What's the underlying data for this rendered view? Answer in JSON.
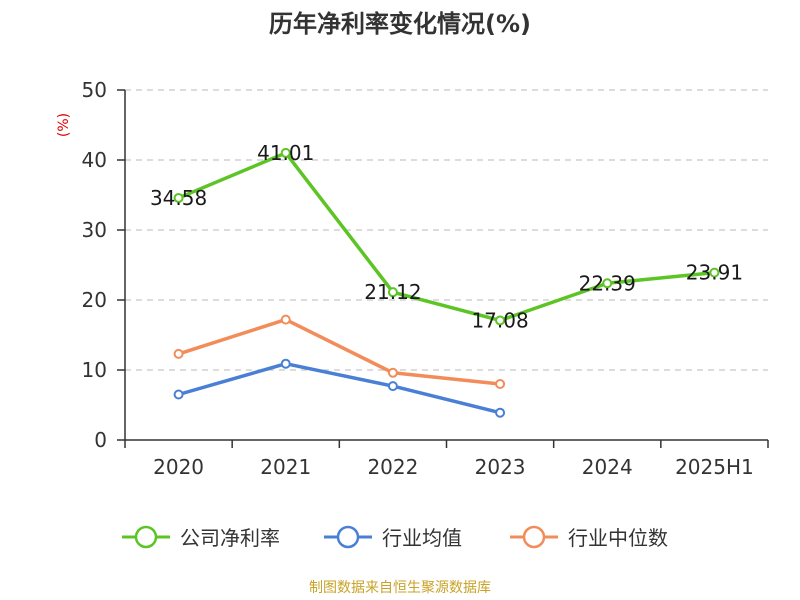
{
  "title": "历年净利率变化情况(%)",
  "source": "制图数据来自恒生聚源数据库",
  "chart_data": {
    "type": "line",
    "title": "历年净利率变化情况(%)",
    "ylabel": "(%)",
    "xlabel": "",
    "categories": [
      "2020",
      "2021",
      "2022",
      "2023",
      "2024",
      "2025H1"
    ],
    "ylim": [
      0,
      50
    ],
    "yticks": [
      0,
      10,
      20,
      30,
      40,
      50
    ],
    "grid": "horizontal-dashed",
    "legend_position": "bottom",
    "series": [
      {
        "name": "公司净利率",
        "color": "#5cc424",
        "values": [
          34.58,
          41.01,
          21.12,
          17.08,
          22.39,
          23.91
        ],
        "labels": [
          "34.58",
          "41.01",
          "21.12",
          "17.08",
          "22.39",
          "23.91"
        ]
      },
      {
        "name": "行业均值",
        "color": "#4a7fd6",
        "values": [
          6.5,
          10.9,
          7.7,
          3.9,
          null,
          null
        ]
      },
      {
        "name": "行业中位数",
        "color": "#f28c59",
        "values": [
          12.3,
          17.2,
          9.6,
          8.0,
          null,
          null
        ]
      }
    ]
  }
}
